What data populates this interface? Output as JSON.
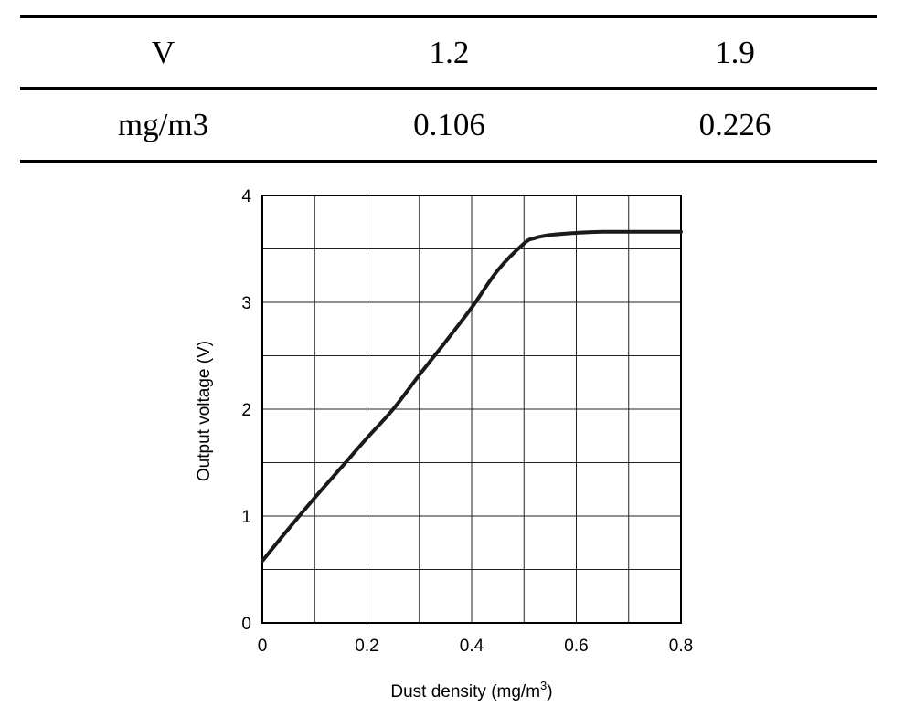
{
  "table": {
    "rows": [
      [
        "V",
        "1.2",
        "1.9"
      ],
      [
        "mg/m3",
        "0.106",
        "0.226"
      ]
    ]
  },
  "chart_data": {
    "type": "line",
    "title": "",
    "xlabel": "Dust density (mg/m",
    "xlabel_sup": "3",
    "xlabel_tail": ")",
    "ylabel": "Output voltage (V)",
    "xlim": [
      0,
      0.8
    ],
    "ylim": [
      0,
      4
    ],
    "grid": true,
    "x_ticks": [
      0,
      0.2,
      0.4,
      0.6,
      0.8
    ],
    "x_tick_labels": [
      "0",
      "0.2",
      "0.4",
      "0.6",
      "0.8"
    ],
    "y_ticks": [
      0,
      1,
      2,
      3,
      4
    ],
    "y_tick_labels": [
      "0",
      "1",
      "2",
      "3",
      "4"
    ],
    "series": [
      {
        "name": "Output voltage",
        "x": [
          0,
          0.05,
          0.1,
          0.15,
          0.2,
          0.25,
          0.3,
          0.35,
          0.4,
          0.45,
          0.5,
          0.52,
          0.55,
          0.6,
          0.65,
          0.7,
          0.75,
          0.8
        ],
        "y": [
          0.58,
          0.88,
          1.17,
          1.45,
          1.73,
          2.0,
          2.32,
          2.63,
          2.95,
          3.3,
          3.55,
          3.6,
          3.63,
          3.65,
          3.66,
          3.66,
          3.66,
          3.66
        ],
        "color": "#1a1a1a"
      }
    ]
  }
}
